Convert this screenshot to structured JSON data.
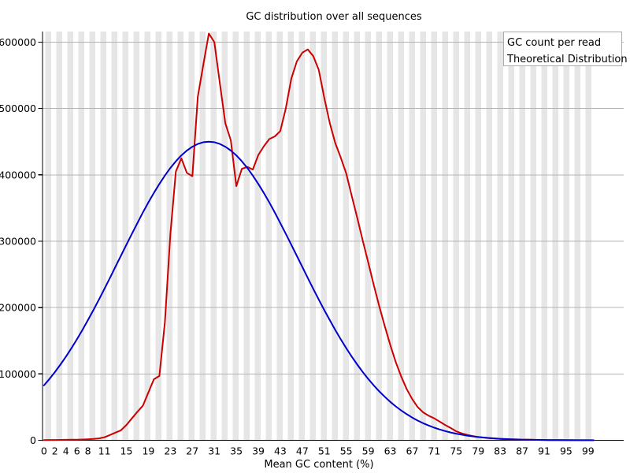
{
  "title": "GC distribution over all sequences",
  "x_axis_title": "Mean GC content (%)",
  "legend": {
    "items": [
      {
        "label": "GC count per read",
        "color": "#cc0000"
      },
      {
        "label": "Theoretical Distribution",
        "color": "#0000cc"
      }
    ]
  },
  "colors": {
    "red_series": "#cc0000",
    "blue_series": "#0000cc",
    "background_band": "#e6e6e6",
    "gridline": "#b4b4b4",
    "axis": "#000000",
    "legend_border": "#aaaaaa",
    "legend_fill": "#ffffff"
  },
  "chart_data": {
    "type": "line",
    "title": "GC distribution over all sequences",
    "xlabel": "Mean GC content (%)",
    "ylabel": "",
    "xlim": [
      0,
      100
    ],
    "ylim": [
      0,
      616000
    ],
    "grid": "horizontal gridlines plus alternating light-gray vertical bands every 2 GC units",
    "legend_position": "top-right",
    "ytick_values": [
      0,
      100000,
      200000,
      300000,
      400000,
      500000,
      600000
    ],
    "ytick_labels": [
      "0",
      "100000",
      "200000",
      "300000",
      "400000",
      "500000",
      "600000"
    ],
    "xtick_values": [
      0,
      2,
      4,
      6,
      8,
      11,
      15,
      19,
      23,
      27,
      31,
      35,
      39,
      43,
      47,
      51,
      55,
      59,
      63,
      67,
      71,
      75,
      79,
      83,
      87,
      91,
      95,
      99
    ],
    "x": [
      0,
      1,
      2,
      3,
      4,
      5,
      6,
      7,
      8,
      9,
      10,
      11,
      12,
      13,
      14,
      15,
      16,
      17,
      18,
      19,
      20,
      21,
      22,
      23,
      24,
      25,
      26,
      27,
      28,
      29,
      30,
      31,
      32,
      33,
      34,
      35,
      36,
      37,
      38,
      39,
      40,
      41,
      42,
      43,
      44,
      45,
      46,
      47,
      48,
      49,
      50,
      51,
      52,
      53,
      54,
      55,
      56,
      57,
      58,
      59,
      60,
      61,
      62,
      63,
      64,
      65,
      66,
      67,
      68,
      69,
      70,
      71,
      72,
      73,
      74,
      75,
      76,
      77,
      78,
      79,
      80,
      81,
      82,
      83,
      84,
      85,
      86,
      87,
      88,
      89,
      90,
      91,
      92,
      93,
      94,
      95,
      96,
      97,
      98,
      99,
      100
    ],
    "series": [
      {
        "name": "GC count per read",
        "color": "#cc0000",
        "values": [
          400,
          450,
          500,
          600,
          700,
          800,
          1000,
          1200,
          1500,
          2000,
          2800,
          4500,
          8000,
          11500,
          15000,
          23000,
          33000,
          43000,
          52000,
          72000,
          92000,
          97000,
          178000,
          310000,
          405000,
          425000,
          403000,
          398000,
          518000,
          566000,
          613000,
          600000,
          538000,
          478000,
          452000,
          383000,
          409000,
          412000,
          408000,
          430000,
          443000,
          454000,
          458000,
          466000,
          500000,
          545000,
          571000,
          584000,
          589000,
          579000,
          558000,
          516000,
          478000,
          448000,
          426000,
          402000,
          368000,
          335000,
          301000,
          268000,
          234000,
          202000,
          172000,
          144000,
          118000,
          96000,
          77000,
          62000,
          50000,
          42000,
          37000,
          33000,
          28000,
          23000,
          18500,
          13500,
          10500,
          8200,
          6400,
          5000,
          4000,
          3200,
          2600,
          2100,
          1700,
          1400,
          1150,
          950,
          800,
          670,
          560,
          470,
          400,
          340,
          290,
          240,
          200,
          170,
          145,
          120,
          100
        ]
      },
      {
        "name": "Theoretical Distribution",
        "color": "#0000cc",
        "values": [
          82700,
          92400,
          102900,
          114100,
          126100,
          138800,
          152200,
          166300,
          181000,
          196200,
          212000,
          228200,
          244600,
          261200,
          278000,
          294700,
          311200,
          327400,
          343200,
          358400,
          372800,
          386400,
          398900,
          410400,
          420500,
          429300,
          436600,
          442400,
          446600,
          449200,
          450000,
          449200,
          446600,
          442400,
          436600,
          429300,
          420500,
          410400,
          398900,
          386400,
          372800,
          358400,
          343200,
          327400,
          311200,
          294700,
          278000,
          261200,
          244600,
          228200,
          212000,
          196200,
          181000,
          166300,
          152200,
          138800,
          126100,
          114100,
          102900,
          92400,
          82700,
          73800,
          65600,
          58000,
          51100,
          44900,
          39300,
          34200,
          29700,
          25700,
          22200,
          19000,
          16300,
          13900,
          11800,
          10000,
          8400,
          7000,
          5900,
          4900,
          4100,
          3400,
          2800,
          2300,
          1900,
          1500,
          1250,
          1000,
          840,
          680,
          550,
          440,
          350,
          280,
          220,
          170,
          140,
          110,
          80,
          60,
          50
        ]
      }
    ]
  }
}
